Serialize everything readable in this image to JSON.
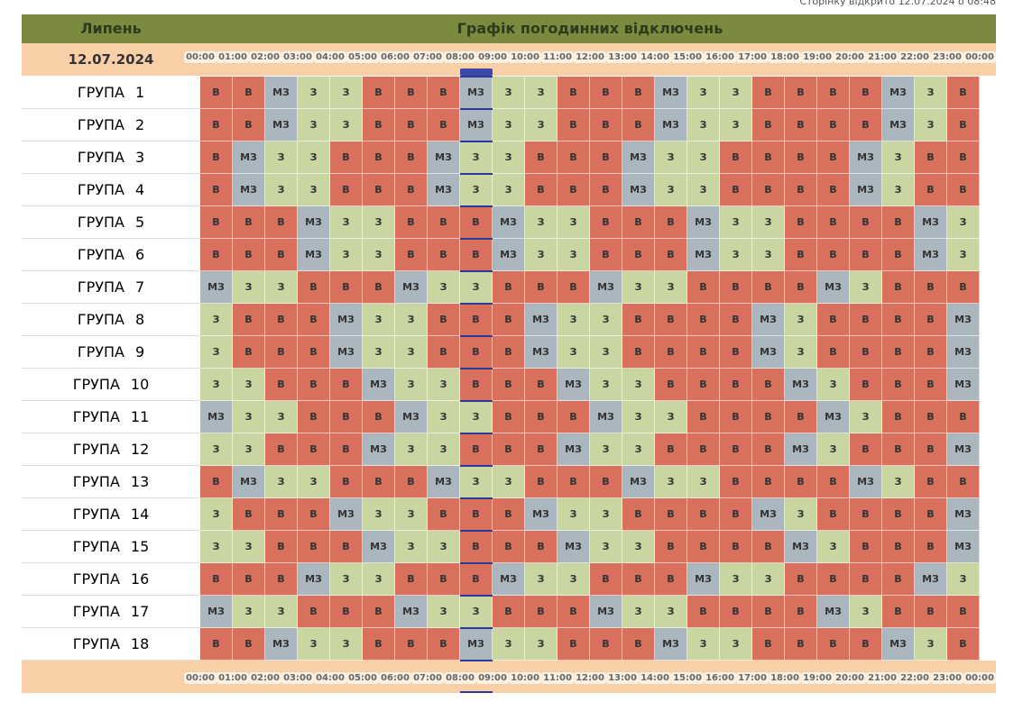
{
  "opened_note": "Сторінку відкрито 12.07.2024 о 08:48",
  "header": {
    "month": "Липень",
    "title": "Графік погодинних відключень",
    "date": "12.07.2024",
    "times": [
      "00:00",
      "01:00",
      "02:00",
      "03:00",
      "04:00",
      "05:00",
      "06:00",
      "07:00",
      "08:00",
      "09:00",
      "10:00",
      "11:00",
      "12:00",
      "13:00",
      "14:00",
      "15:00",
      "16:00",
      "17:00",
      "18:00",
      "19:00",
      "20:00",
      "21:00",
      "22:00",
      "23:00",
      "00:00"
    ]
  },
  "footer": {
    "times": [
      "00:00",
      "01:00",
      "02:00",
      "03:00",
      "04:00",
      "05:00",
      "06:00",
      "07:00",
      "08:00",
      "09:00",
      "10:00",
      "11:00",
      "12:00",
      "13:00",
      "14:00",
      "15:00",
      "16:00",
      "17:00",
      "18:00",
      "19:00",
      "20:00",
      "21:00",
      "22:00",
      "23:00",
      "00:00"
    ]
  },
  "rows": [
    {
      "label": "ГРУПА",
      "number": "1",
      "cells": [
        "В",
        "В",
        "МЗ",
        "З",
        "З",
        "В",
        "В",
        "В",
        "МЗ",
        "З",
        "З",
        "В",
        "В",
        "В",
        "МЗ",
        "З",
        "З",
        "В",
        "В",
        "В",
        "В",
        "МЗ",
        "З",
        "В"
      ]
    },
    {
      "label": "ГРУПА",
      "number": "2",
      "cells": [
        "В",
        "В",
        "МЗ",
        "З",
        "З",
        "В",
        "В",
        "В",
        "МЗ",
        "З",
        "З",
        "В",
        "В",
        "В",
        "МЗ",
        "З",
        "З",
        "В",
        "В",
        "В",
        "В",
        "МЗ",
        "З",
        "В"
      ]
    },
    {
      "label": "ГРУПА",
      "number": "3",
      "cells": [
        "В",
        "МЗ",
        "З",
        "З",
        "В",
        "В",
        "В",
        "МЗ",
        "З",
        "З",
        "В",
        "В",
        "В",
        "МЗ",
        "З",
        "З",
        "В",
        "В",
        "В",
        "В",
        "МЗ",
        "З",
        "В",
        "В"
      ]
    },
    {
      "label": "ГРУПА",
      "number": "4",
      "cells": [
        "В",
        "МЗ",
        "З",
        "З",
        "В",
        "В",
        "В",
        "МЗ",
        "З",
        "З",
        "В",
        "В",
        "В",
        "МЗ",
        "З",
        "З",
        "В",
        "В",
        "В",
        "В",
        "МЗ",
        "З",
        "В",
        "В"
      ]
    },
    {
      "label": "ГРУПА",
      "number": "5",
      "cells": [
        "В",
        "В",
        "В",
        "МЗ",
        "З",
        "З",
        "В",
        "В",
        "В",
        "МЗ",
        "З",
        "З",
        "В",
        "В",
        "В",
        "МЗ",
        "З",
        "З",
        "В",
        "В",
        "В",
        "В",
        "МЗ",
        "З"
      ]
    },
    {
      "label": "ГРУПА",
      "number": "6",
      "cells": [
        "В",
        "В",
        "В",
        "МЗ",
        "З",
        "З",
        "В",
        "В",
        "В",
        "МЗ",
        "З",
        "З",
        "В",
        "В",
        "В",
        "МЗ",
        "З",
        "З",
        "В",
        "В",
        "В",
        "В",
        "МЗ",
        "З"
      ]
    },
    {
      "label": "ГРУПА",
      "number": "7",
      "cells": [
        "МЗ",
        "З",
        "З",
        "В",
        "В",
        "В",
        "МЗ",
        "З",
        "З",
        "В",
        "В",
        "В",
        "МЗ",
        "З",
        "З",
        "В",
        "В",
        "В",
        "В",
        "МЗ",
        "З",
        "В",
        "В",
        "В"
      ]
    },
    {
      "label": "ГРУПА",
      "number": "8",
      "cells": [
        "З",
        "В",
        "В",
        "В",
        "МЗ",
        "З",
        "З",
        "В",
        "В",
        "В",
        "МЗ",
        "З",
        "З",
        "В",
        "В",
        "В",
        "В",
        "МЗ",
        "З",
        "В",
        "В",
        "В",
        "В",
        "МЗ"
      ]
    },
    {
      "label": "ГРУПА",
      "number": "9",
      "cells": [
        "З",
        "В",
        "В",
        "В",
        "МЗ",
        "З",
        "З",
        "В",
        "В",
        "В",
        "МЗ",
        "З",
        "З",
        "В",
        "В",
        "В",
        "В",
        "МЗ",
        "З",
        "В",
        "В",
        "В",
        "В",
        "МЗ"
      ]
    },
    {
      "label": "ГРУПА",
      "number": "10",
      "cells": [
        "З",
        "З",
        "В",
        "В",
        "В",
        "МЗ",
        "З",
        "З",
        "В",
        "В",
        "В",
        "МЗ",
        "З",
        "З",
        "В",
        "В",
        "В",
        "В",
        "МЗ",
        "З",
        "В",
        "В",
        "В",
        "МЗ"
      ]
    },
    {
      "label": "ГРУПА",
      "number": "11",
      "cells": [
        "МЗ",
        "З",
        "З",
        "В",
        "В",
        "В",
        "МЗ",
        "З",
        "З",
        "В",
        "В",
        "В",
        "МЗ",
        "З",
        "З",
        "В",
        "В",
        "В",
        "В",
        "МЗ",
        "З",
        "В",
        "В",
        "В"
      ]
    },
    {
      "label": "ГРУПА",
      "number": "12",
      "cells": [
        "З",
        "З",
        "В",
        "В",
        "В",
        "МЗ",
        "З",
        "З",
        "В",
        "В",
        "В",
        "МЗ",
        "З",
        "З",
        "В",
        "В",
        "В",
        "В",
        "МЗ",
        "З",
        "В",
        "В",
        "В",
        "МЗ"
      ]
    },
    {
      "label": "ГРУПА",
      "number": "13",
      "cells": [
        "В",
        "МЗ",
        "З",
        "З",
        "В",
        "В",
        "В",
        "МЗ",
        "З",
        "З",
        "В",
        "В",
        "В",
        "МЗ",
        "З",
        "З",
        "В",
        "В",
        "В",
        "В",
        "МЗ",
        "З",
        "В",
        "В"
      ]
    },
    {
      "label": "ГРУПА",
      "number": "14",
      "cells": [
        "З",
        "В",
        "В",
        "В",
        "МЗ",
        "З",
        "З",
        "В",
        "В",
        "В",
        "МЗ",
        "З",
        "З",
        "В",
        "В",
        "В",
        "В",
        "МЗ",
        "З",
        "В",
        "В",
        "В",
        "В",
        "МЗ"
      ]
    },
    {
      "label": "ГРУПА",
      "number": "15",
      "cells": [
        "З",
        "З",
        "В",
        "В",
        "В",
        "МЗ",
        "З",
        "З",
        "В",
        "В",
        "В",
        "МЗ",
        "З",
        "З",
        "В",
        "В",
        "В",
        "В",
        "МЗ",
        "З",
        "В",
        "В",
        "В",
        "МЗ"
      ]
    },
    {
      "label": "ГРУПА",
      "number": "16",
      "cells": [
        "В",
        "В",
        "В",
        "МЗ",
        "З",
        "З",
        "В",
        "В",
        "В",
        "МЗ",
        "З",
        "З",
        "В",
        "В",
        "В",
        "МЗ",
        "З",
        "З",
        "В",
        "В",
        "В",
        "В",
        "МЗ",
        "З"
      ]
    },
    {
      "label": "ГРУПА",
      "number": "17",
      "cells": [
        "МЗ",
        "З",
        "З",
        "В",
        "В",
        "В",
        "МЗ",
        "З",
        "З",
        "В",
        "В",
        "В",
        "МЗ",
        "З",
        "З",
        "В",
        "В",
        "В",
        "В",
        "МЗ",
        "З",
        "В",
        "В",
        "В"
      ]
    },
    {
      "label": "ГРУПА",
      "number": "18",
      "cells": [
        "В",
        "В",
        "МЗ",
        "З",
        "З",
        "В",
        "В",
        "В",
        "МЗ",
        "З",
        "З",
        "В",
        "В",
        "В",
        "МЗ",
        "З",
        "З",
        "В",
        "В",
        "В",
        "В",
        "МЗ",
        "З",
        "В"
      ]
    }
  ]
}
